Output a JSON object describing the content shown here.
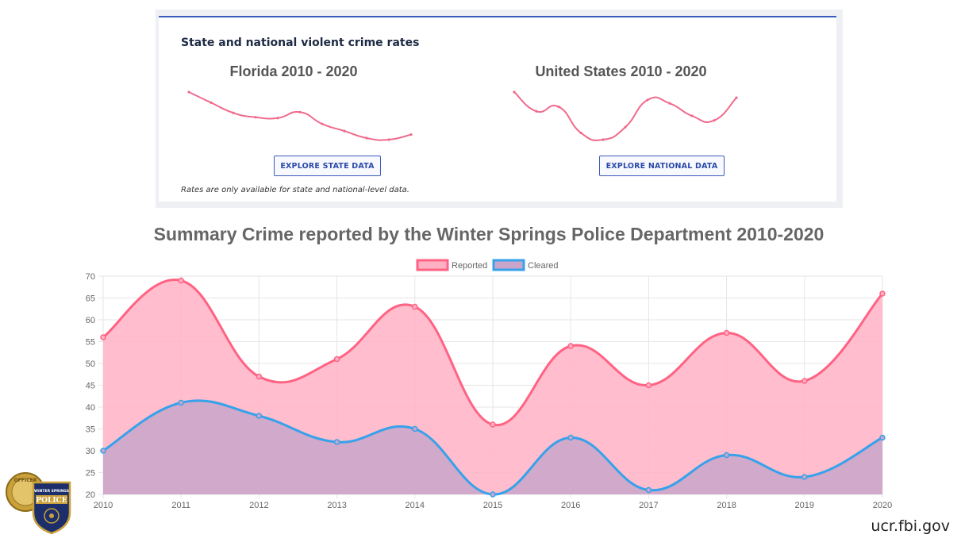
{
  "rates_card": {
    "title": "State and national violent crime rates",
    "note": "Rates are only available for state and national-level data.",
    "florida": {
      "title": "Florida 2010 - 2020",
      "button": "EXPLORE STATE DATA",
      "values": [
        542,
        515,
        489,
        478,
        476,
        491,
        461,
        443,
        425,
        421,
        434
      ]
    },
    "national": {
      "title": "United States 2010 - 2020",
      "button": "EXPLORE NATIONAL DATA",
      "values": [
        404,
        387,
        391,
        368,
        362,
        373,
        397,
        394,
        383,
        379,
        399
      ]
    },
    "line_color": "#f06a8c"
  },
  "chart_title": "Summary Crime reported by the Winter Springs Police Department 2010-2020",
  "chart_data": {
    "type": "area",
    "categories": [
      "2010",
      "2011",
      "2012",
      "2013",
      "2014",
      "2015",
      "2016",
      "2017",
      "2018",
      "2019",
      "2020"
    ],
    "series": [
      {
        "name": "Reported",
        "values": [
          56,
          69,
          47,
          51,
          63,
          36,
          54,
          45,
          57,
          46,
          66
        ],
        "line": "#ff6384",
        "fill": "#ffb1c4"
      },
      {
        "name": "Cleared",
        "values": [
          30,
          41,
          38,
          32,
          35,
          20,
          33,
          21,
          29,
          24,
          33
        ],
        "line": "#36a2eb",
        "fill": "#c9a6c9"
      }
    ],
    "ylim": [
      20,
      70
    ],
    "yticks": [
      "70",
      "65",
      "60",
      "55",
      "50",
      "45",
      "40",
      "35",
      "30",
      "25",
      "20"
    ],
    "grid": true,
    "legend_position": "top"
  },
  "badge": {
    "text_top": "OFFICER",
    "text_dept": "WINTER SPRINGS",
    "text_main": "POLICE",
    "gold": "#c9a03a",
    "navy": "#1d2f6b"
  },
  "source": "ucr.fbi.gov"
}
